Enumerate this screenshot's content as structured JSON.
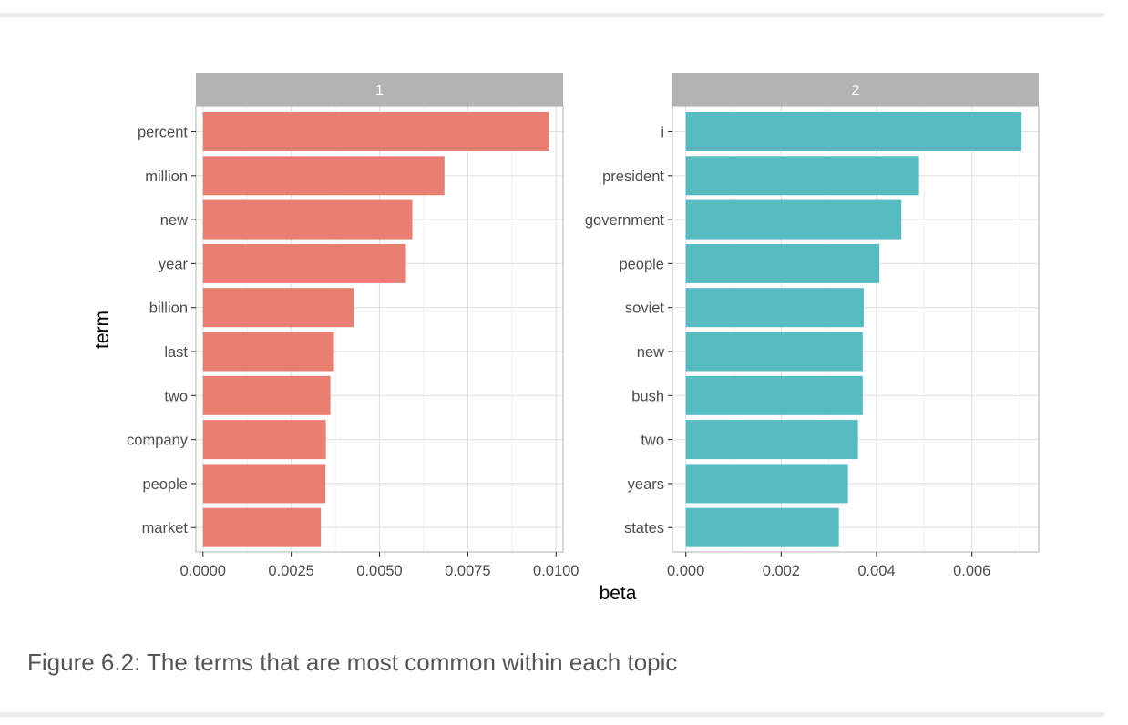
{
  "caption": "Figure 6.2: The terms that are most common within each topic",
  "chart_data": {
    "type": "bar",
    "orientation": "horizontal",
    "xlabel": "beta",
    "ylabel": "term",
    "grid": true,
    "panels": [
      {
        "facet_label": "1",
        "color": "#E87F72",
        "xlim": [
          -0.0002,
          0.0102
        ],
        "xticks": [
          0.0,
          0.0025,
          0.005,
          0.0075,
          0.01
        ],
        "xtick_labels": [
          "0.0000",
          "0.0025",
          "0.0050",
          "0.0075",
          "0.0100"
        ],
        "categories": [
          "percent",
          "million",
          "new",
          "year",
          "billion",
          "last",
          "two",
          "company",
          "people",
          "market"
        ],
        "values": [
          0.0098,
          0.00684,
          0.00593,
          0.00575,
          0.00427,
          0.00371,
          0.00361,
          0.00348,
          0.00347,
          0.00334
        ]
      },
      {
        "facet_label": "2",
        "color": "#56BCC2",
        "xlim": [
          -0.00028,
          0.0074
        ],
        "xticks": [
          0.0,
          0.002,
          0.004,
          0.006
        ],
        "xtick_labels": [
          "0.000",
          "0.002",
          "0.004",
          "0.006"
        ],
        "categories": [
          "i",
          "president",
          "government",
          "people",
          "soviet",
          "new",
          "bush",
          "two",
          "years",
          "states"
        ],
        "values": [
          0.00704,
          0.00489,
          0.00452,
          0.00406,
          0.00373,
          0.00371,
          0.00371,
          0.00361,
          0.0034,
          0.00321
        ]
      }
    ]
  }
}
